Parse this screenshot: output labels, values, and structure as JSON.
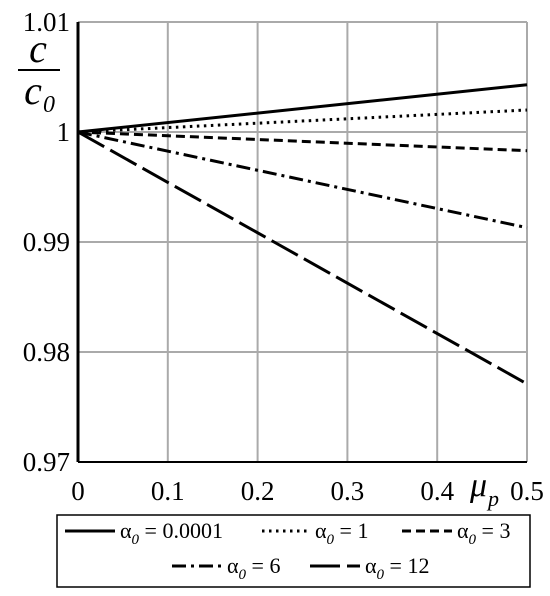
{
  "chart_data": {
    "type": "line",
    "title": "",
    "xlabel": "μ",
    "xlabel_sub": "p",
    "ylabel_num": "c",
    "ylabel_den": "c",
    "ylabel_den_sub": "0",
    "xlim": [
      0,
      0.5
    ],
    "ylim": [
      0.97,
      1.01
    ],
    "grid": true,
    "legend_placement": "bottom",
    "x_ticks": [
      "0",
      "0.1",
      "0.2",
      "0.3",
      "0.4",
      "0.5"
    ],
    "y_ticks": [
      "0.97",
      "0.98",
      "0.99",
      "1",
      "1.01"
    ],
    "x_tick_values": [
      0,
      0.1,
      0.2,
      0.3,
      0.4,
      0.5
    ],
    "y_tick_values": [
      0.97,
      0.98,
      0.99,
      1.0,
      1.01
    ],
    "series": [
      {
        "alpha": "α",
        "sub": "0",
        "rest": " = 0.0001",
        "style": "solid",
        "x": [
          0,
          0.5
        ],
        "y": [
          1.0,
          1.0043
        ]
      },
      {
        "alpha": "α",
        "sub": "0",
        "rest": " = 1",
        "style": "dotted",
        "x": [
          0,
          0.5
        ],
        "y": [
          1.0,
          1.002
        ]
      },
      {
        "alpha": "α",
        "sub": "0",
        "rest": " = 3",
        "style": "dashed",
        "x": [
          0,
          0.5
        ],
        "y": [
          1.0,
          0.9983
        ]
      },
      {
        "alpha": "α",
        "sub": "0",
        "rest": " = 6",
        "style": "dashdot",
        "x": [
          0,
          0.5
        ],
        "y": [
          1.0,
          0.9913
        ]
      },
      {
        "alpha": "α",
        "sub": "0",
        "rest": " = 12",
        "style": "longdash",
        "x": [
          0,
          0.5
        ],
        "y": [
          1.0,
          0.9771
        ]
      }
    ]
  }
}
